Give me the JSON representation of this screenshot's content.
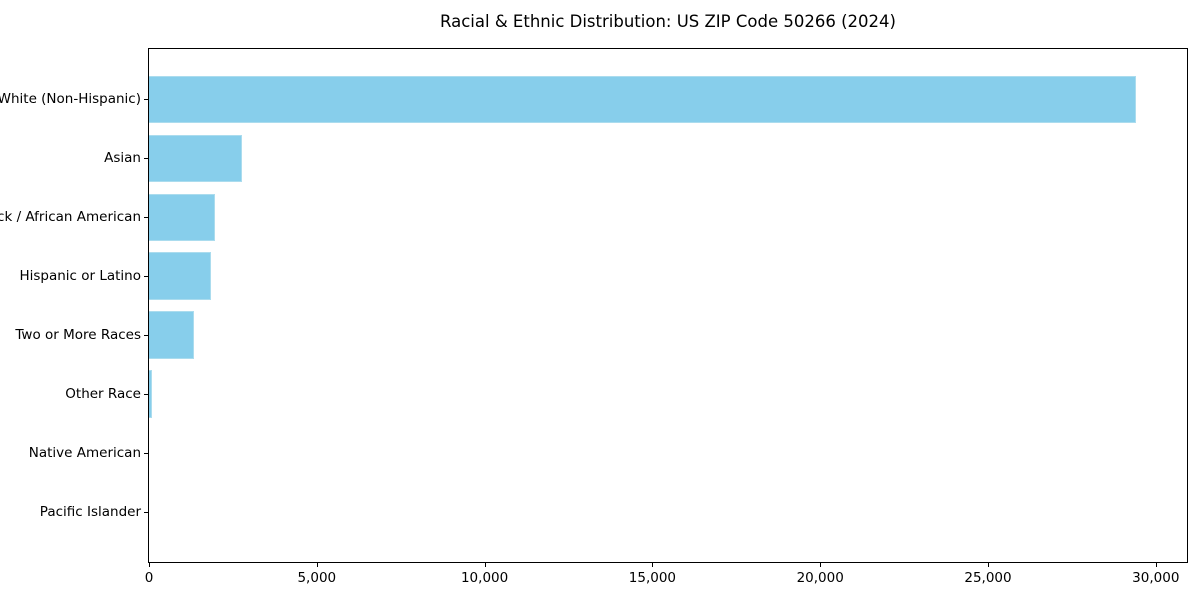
{
  "chart_data": {
    "type": "bar",
    "orientation": "horizontal",
    "title": "Racial & Ethnic Distribution: US ZIP Code 50266 (2024)",
    "categories": [
      "White (Non-Hispanic)",
      "Asian",
      "Black / African American",
      "Hispanic or Latino",
      "Two or More Races",
      "Other Race",
      "Native American",
      "Pacific Islander"
    ],
    "values": [
      29400,
      2780,
      1960,
      1850,
      1350,
      90,
      0,
      0
    ],
    "xlabel": "",
    "ylabel": "",
    "xlim": [
      0,
      30930
    ],
    "x_ticks": [
      0,
      5000,
      10000,
      15000,
      20000,
      25000,
      30000
    ],
    "x_tick_labels": [
      "0",
      "5,000",
      "10,000",
      "15,000",
      "20,000",
      "25,000",
      "30,000"
    ],
    "bar_color": "#87CEEB",
    "spine_color": "#000000",
    "text_color": "#000000",
    "grid": false,
    "legend": null
  }
}
